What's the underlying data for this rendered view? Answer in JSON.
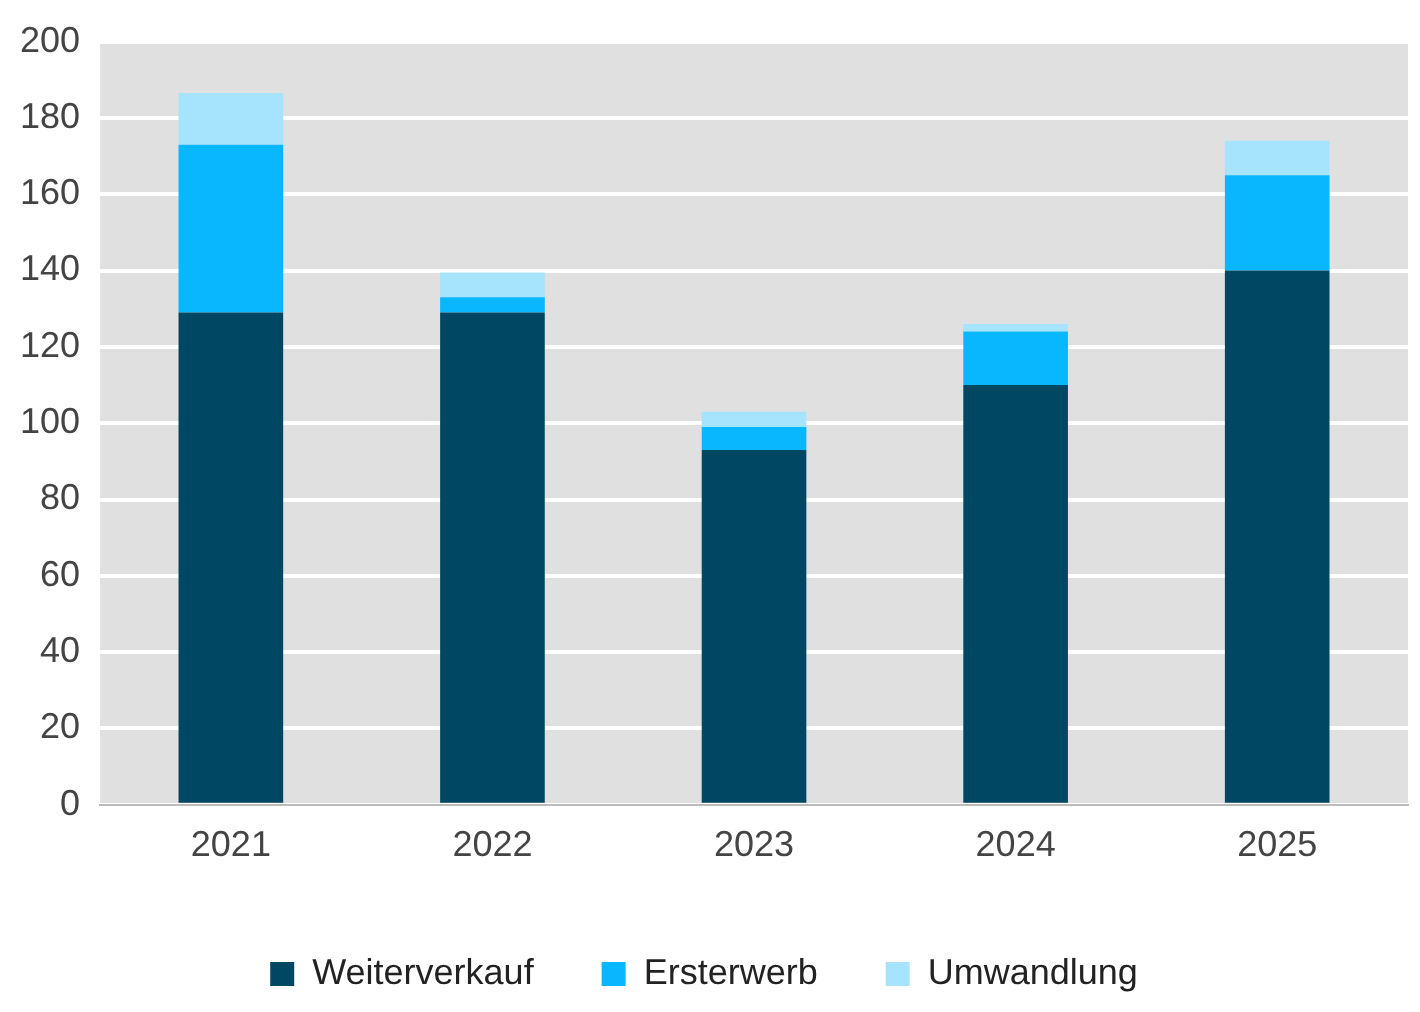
{
  "chart_data": {
    "type": "bar",
    "stacked": true,
    "categories": [
      "2021",
      "2022",
      "2023",
      "2024",
      "2025"
    ],
    "series": [
      {
        "name": "Weiterverkauf",
        "color": "#004763",
        "values": [
          129,
          129,
          93,
          110,
          140
        ]
      },
      {
        "name": "Ersterwerb",
        "color": "#08b7ff",
        "values": [
          44,
          4,
          6,
          14,
          25
        ]
      },
      {
        "name": "Umwandlung",
        "color": "#a6e3fc",
        "values": [
          13.5,
          6.5,
          4,
          2,
          9
        ]
      }
    ],
    "ylim": [
      0,
      200
    ],
    "yticks": [
      0,
      20,
      40,
      60,
      80,
      100,
      120,
      140,
      160,
      180,
      200
    ],
    "grid": "y",
    "legend": "bottom"
  }
}
